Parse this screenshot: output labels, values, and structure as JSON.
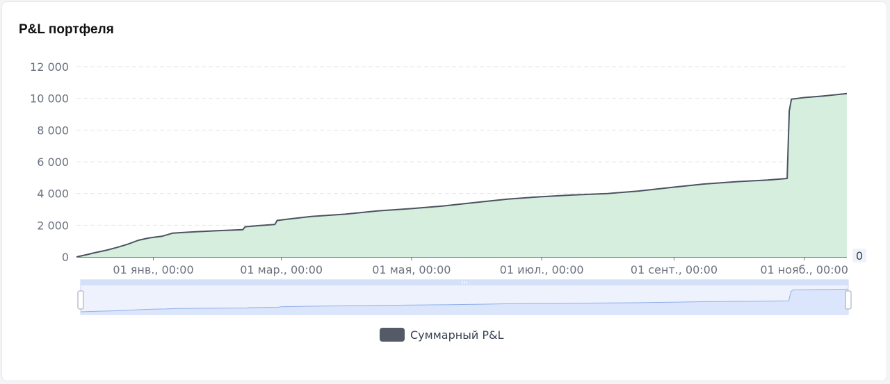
{
  "card": {
    "title": "P&L портфеля"
  },
  "colors": {
    "line": "#4a5260",
    "area": "#d6eedd",
    "grid": "#e2e5ea",
    "slider_fill": "#dbe5fb",
    "slider_line": "#8fb0e8",
    "legend_swatch": "#545b67"
  },
  "chart_data": {
    "type": "area",
    "title": "P&L портфеля",
    "x_tick_labels": [
      "01 янв., 00:00",
      "01 мар., 00:00",
      "01 мая, 00:00",
      "01 июл., 00:00",
      "01 сент., 00:00",
      "01 нояб., 00:00"
    ],
    "y_tick_labels": [
      "0",
      "2 000",
      "4 000",
      "6 000",
      "8 000",
      "10 000",
      "12 000"
    ],
    "ylim": [
      0,
      12000
    ],
    "grid": true,
    "legend_position": "bottom-center",
    "series": [
      {
        "name": "Суммарный P&L",
        "points": [
          [
            "2023-11-26",
            0
          ],
          [
            "2023-12-01",
            150
          ],
          [
            "2023-12-05",
            280
          ],
          [
            "2023-12-10",
            420
          ],
          [
            "2023-12-15",
            600
          ],
          [
            "2023-12-20",
            800
          ],
          [
            "2023-12-25",
            1050
          ],
          [
            "2023-12-30",
            1200
          ],
          [
            "2024-01-05",
            1300
          ],
          [
            "2024-01-10",
            1500
          ],
          [
            "2024-01-20",
            1580
          ],
          [
            "2024-01-31",
            1650
          ],
          [
            "2024-02-12",
            1720
          ],
          [
            "2024-02-13",
            1900
          ],
          [
            "2024-02-20",
            1980
          ],
          [
            "2024-02-27",
            2050
          ],
          [
            "2024-02-28",
            2300
          ],
          [
            "2024-03-05",
            2400
          ],
          [
            "2024-03-15",
            2550
          ],
          [
            "2024-03-31",
            2700
          ],
          [
            "2024-04-15",
            2900
          ],
          [
            "2024-05-01",
            3050
          ],
          [
            "2024-05-15",
            3200
          ],
          [
            "2024-06-01",
            3450
          ],
          [
            "2024-06-15",
            3650
          ],
          [
            "2024-07-01",
            3800
          ],
          [
            "2024-07-15",
            3900
          ],
          [
            "2024-08-01",
            4000
          ],
          [
            "2024-08-15",
            4150
          ],
          [
            "2024-09-01",
            4400
          ],
          [
            "2024-09-15",
            4600
          ],
          [
            "2024-10-01",
            4750
          ],
          [
            "2024-10-15",
            4850
          ],
          [
            "2024-10-24",
            4950
          ],
          [
            "2024-10-25",
            9200
          ],
          [
            "2024-10-26",
            9950
          ],
          [
            "2024-11-01",
            10050
          ],
          [
            "2024-11-10",
            10150
          ],
          [
            "2024-11-21",
            10300
          ]
        ]
      }
    ]
  },
  "slider": {
    "handle_label": "0"
  },
  "legend": {
    "label": "Суммарный P&L"
  }
}
